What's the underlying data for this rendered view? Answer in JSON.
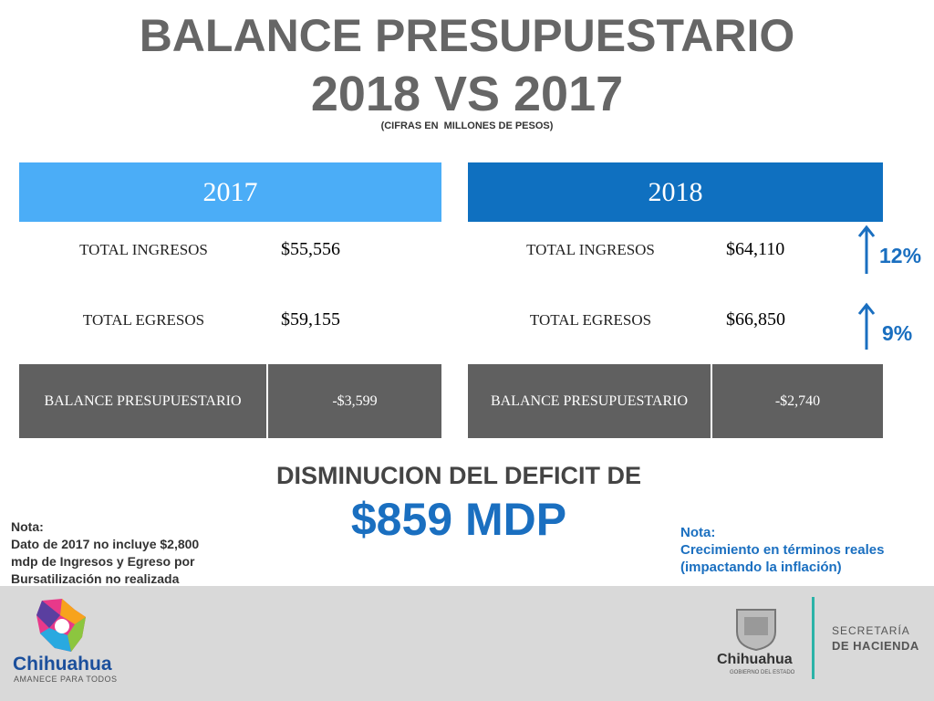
{
  "header": {
    "title": "BALANCE PRESUPUESTARIO",
    "subtitle": "2018 VS 2017",
    "units": "(CIFRAS EN  MILLONES DE PESOS)"
  },
  "tables": [
    {
      "year": "2017",
      "rows": [
        [
          "TOTAL INGRESOS",
          "$55,556"
        ],
        [
          "TOTAL EGRESOS",
          "$59,155"
        ]
      ],
      "balance": [
        "BALANCE PRESUPUESTARIO",
        "-$3,599"
      ]
    },
    {
      "year": "2018",
      "rows": [
        [
          "TOTAL INGRESOS",
          "$64,110"
        ],
        [
          "TOTAL EGRESOS",
          "$66,850"
        ]
      ],
      "balance": [
        "BALANCE PRESUPUESTARIO",
        "-$2,740"
      ]
    }
  ],
  "growth": [
    "12%",
    "9%"
  ],
  "summary": {
    "label": "DISMINUCION DEL DEFICIT DE",
    "amount": "$859 MDP"
  },
  "notes": [
    {
      "title": "Nota:",
      "lines": [
        "Dato de 2017 no incluye $2,800",
        "mdp de Ingresos y Egreso por",
        "Bursatilización no realizada"
      ]
    },
    {
      "title": "Nota:",
      "lines": [
        "Crecimiento en términos reales",
        "(impactando la inflación)"
      ]
    }
  ],
  "footer": {
    "left": {
      "name": "Chihuahua",
      "tagline": "AMANECE PARA TODOS"
    },
    "right": {
      "name": "Chihuahua",
      "tagline": "GOBIERNO DEL ESTADO",
      "dept1": "SECRETARÍA",
      "dept2": "DE HACIENDA"
    }
  }
}
